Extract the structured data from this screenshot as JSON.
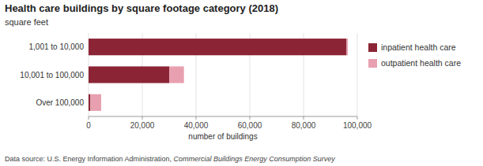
{
  "chart_data": {
    "type": "bar",
    "orientation": "horizontal",
    "stacked": true,
    "title": "Health care buildings by square footage category (2018)",
    "subtitle": "square feet",
    "xlabel": "number of buildings",
    "categories": [
      "1,001 to 10,000",
      "10,001 to 100,000",
      "Over 100,000"
    ],
    "series": [
      {
        "name": "inpatient health care",
        "color": "#8B2535",
        "values": [
          96000,
          30000,
          700
        ]
      },
      {
        "name": "outpatient health care",
        "color": "#E8A0B0",
        "values": [
          500,
          5500,
          4000
        ]
      }
    ],
    "xlim": [
      0,
      100000
    ],
    "xticks": [
      0,
      {
        "value": 20000,
        "label": "20,000"
      },
      {
        "value": 40000,
        "label": "40,000"
      },
      {
        "value": 60000,
        "label": "60,000"
      },
      {
        "value": 80000,
        "label": "80,000"
      },
      {
        "value": 100000,
        "label": "100,000"
      }
    ],
    "grid": true,
    "legend": "right",
    "annotations": [
      "Data source: U.S. Energy Information Administration, ",
      "Commercial Buildings Energy Consumption Survey"
    ]
  }
}
